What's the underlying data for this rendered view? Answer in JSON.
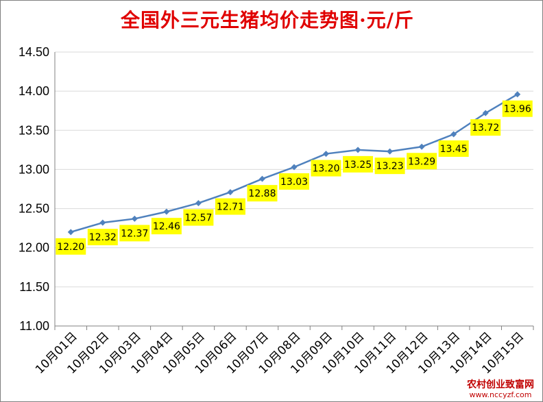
{
  "chart_data": {
    "type": "line",
    "title": "全国外三元生猪均价走势图·元/斤",
    "xlabel": "",
    "ylabel": "",
    "categories": [
      "10月01日",
      "10月02日",
      "10月03日",
      "10月04日",
      "10月05日",
      "10月06日",
      "10月07日",
      "10月08日",
      "10月09日",
      "10月10日",
      "10月11日",
      "10月12日",
      "10月13日",
      "10月14日",
      "10月15日"
    ],
    "series": [
      {
        "values": [
          12.2,
          12.32,
          12.37,
          12.46,
          12.57,
          12.71,
          12.88,
          13.03,
          13.2,
          13.25,
          13.23,
          13.29,
          13.45,
          13.72,
          13.96
        ]
      }
    ],
    "data_labels": [
      "12.20",
      "12.32",
      "12.37",
      "12.46",
      "12.57",
      "12.71",
      "12.88",
      "13.03",
      "13.20",
      "13.25",
      "13.23",
      "13.29",
      "13.45",
      "13.72",
      "13.96"
    ],
    "y_ticks": [
      "11.00",
      "11.50",
      "12.00",
      "12.50",
      "13.00",
      "13.50",
      "14.00",
      "14.50"
    ],
    "ylim": [
      11.0,
      14.5
    ],
    "y_step": 0.5,
    "grid": true,
    "legend": "none",
    "colors": {
      "line": "#4f81bd",
      "marker": "#4f81bd",
      "label_bg": "#ffff00",
      "title": "#e00000",
      "grid": "#d9d9d9"
    }
  },
  "watermark": {
    "line1": "农村创业致富网",
    "line2": "www.nccyzf.com"
  }
}
